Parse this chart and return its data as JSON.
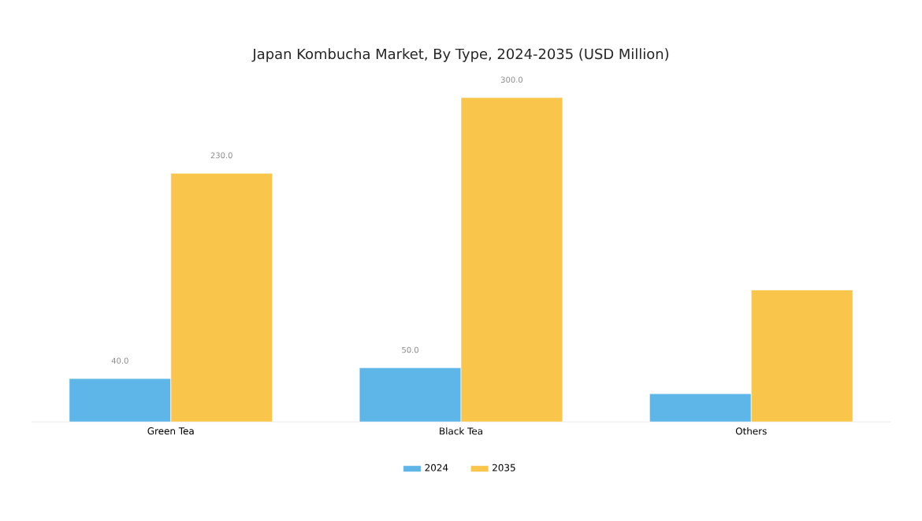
{
  "chart_data": {
    "type": "bar",
    "title": "Japan Kombucha Market, By Type, 2024-2035 (USD Million)",
    "categories": [
      "Green Tea",
      "Black Tea",
      "Others"
    ],
    "series": [
      {
        "name": "2024",
        "color": "#5db5e8",
        "values": [
          40,
          50,
          26
        ],
        "value_labels": [
          "40.0",
          "50.0",
          null
        ]
      },
      {
        "name": "2035",
        "color": "#f9c54a",
        "values": [
          230,
          300,
          122
        ],
        "value_labels": [
          "230.0",
          "300.0",
          null
        ]
      }
    ],
    "legend": "bottom"
  }
}
